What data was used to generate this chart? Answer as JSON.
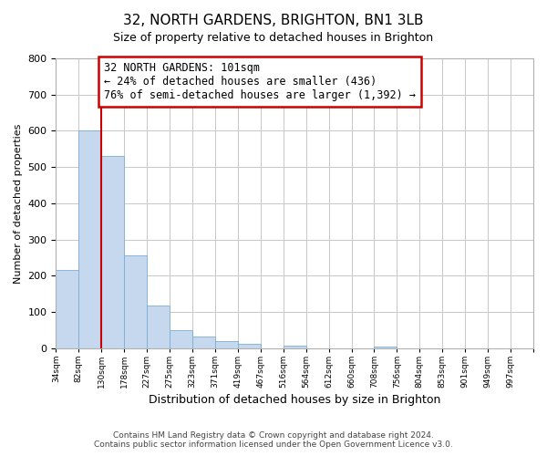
{
  "title": "32, NORTH GARDENS, BRIGHTON, BN1 3LB",
  "subtitle": "Size of property relative to detached houses in Brighton",
  "xlabel": "Distribution of detached houses by size in Brighton",
  "ylabel": "Number of detached properties",
  "footer_line1": "Contains HM Land Registry data © Crown copyright and database right 2024.",
  "footer_line2": "Contains public sector information licensed under the Open Government Licence v3.0.",
  "bin_labels": [
    "34sqm",
    "82sqm",
    "130sqm",
    "178sqm",
    "227sqm",
    "275sqm",
    "323sqm",
    "371sqm",
    "419sqm",
    "467sqm",
    "516sqm",
    "564sqm",
    "612sqm",
    "660sqm",
    "708sqm",
    "756sqm",
    "804sqm",
    "853sqm",
    "901sqm",
    "949sqm",
    "997sqm"
  ],
  "bar_values": [
    215,
    600,
    530,
    255,
    118,
    50,
    33,
    20,
    13,
    0,
    8,
    0,
    0,
    0,
    5,
    0,
    0,
    0,
    0,
    0,
    0
  ],
  "bar_color": "#c5d8ed",
  "bar_edge_color": "#7baed4",
  "annotation_text_line1": "32 NORTH GARDENS: 101sqm",
  "annotation_text_line2": "← 24% of detached houses are smaller (436)",
  "annotation_text_line3": "76% of semi-detached houses are larger (1,392) →",
  "annotation_box_edge_color": "#cc0000",
  "marker_line_color": "#cc0000",
  "ylim": [
    0,
    800
  ],
  "yticks": [
    0,
    100,
    200,
    300,
    400,
    500,
    600,
    700,
    800
  ],
  "background_color": "#ffffff",
  "grid_color": "#c8c8c8",
  "title_fontsize": 11,
  "subtitle_fontsize": 9,
  "annotation_fontsize": 8.5,
  "footer_fontsize": 6.5,
  "ylabel_fontsize": 8,
  "xlabel_fontsize": 9
}
